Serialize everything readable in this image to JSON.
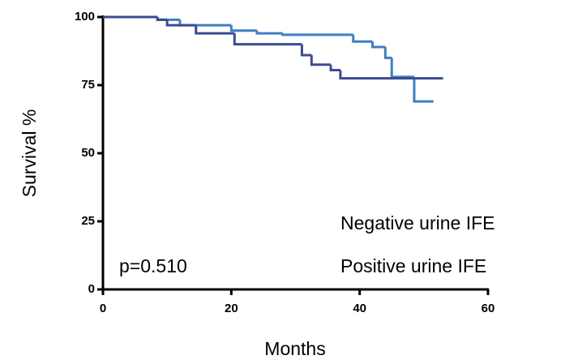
{
  "chart_data": {
    "type": "step",
    "xlabel": "Months",
    "ylabel": "Survival %",
    "annotation": "p=0.510",
    "xlim": [
      0,
      60
    ],
    "xticks": [
      0,
      20,
      40,
      60
    ],
    "ylim": [
      0,
      100
    ],
    "yticks": [
      0,
      25,
      50,
      75,
      100
    ],
    "series": [
      {
        "name": "Negative urine IFE",
        "color": "#3f7fc2",
        "x": [
          0,
          8.5,
          12,
          20,
          24,
          28,
          39,
          42,
          44,
          45,
          48.5,
          51.5
        ],
        "values": [
          100,
          99,
          97,
          95,
          94,
          93.5,
          91,
          89,
          85,
          78,
          69,
          69
        ]
      },
      {
        "name": "Positive urine IFE",
        "color": "#3c4b91",
        "x": [
          0,
          8.5,
          10,
          14.5,
          20.5,
          31,
          32.5,
          35.5,
          37,
          53
        ],
        "values": [
          100,
          99,
          97,
          94,
          90,
          86,
          82.5,
          80.5,
          77.5,
          77.5
        ]
      }
    ]
  }
}
